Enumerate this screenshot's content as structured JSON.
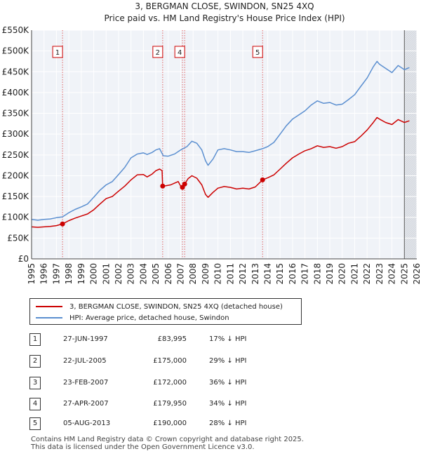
{
  "chart_data": {
    "type": "line",
    "title": "3, BERGMAN CLOSE, SWINDON, SN25 4XQ",
    "subtitle": "Price paid vs. HM Land Registry's House Price Index (HPI)",
    "xlim": [
      1995,
      2026
    ],
    "ylim": [
      0,
      550000
    ],
    "y_ticks": [
      {
        "value": 0,
        "label": "£0"
      },
      {
        "value": 50000,
        "label": "£50K"
      },
      {
        "value": 100000,
        "label": "£100K"
      },
      {
        "value": 150000,
        "label": "£150K"
      },
      {
        "value": 200000,
        "label": "£200K"
      },
      {
        "value": 250000,
        "label": "£250K"
      },
      {
        "value": 300000,
        "label": "£300K"
      },
      {
        "value": 350000,
        "label": "£350K"
      },
      {
        "value": 400000,
        "label": "£400K"
      },
      {
        "value": 450000,
        "label": "£450K"
      },
      {
        "value": 500000,
        "label": "£500K"
      },
      {
        "value": 550000,
        "label": "£550K"
      }
    ],
    "x_ticks": [
      "1995",
      "1996",
      "1997",
      "1998",
      "1999",
      "2000",
      "2001",
      "2002",
      "2003",
      "2004",
      "2005",
      "2006",
      "2007",
      "2008",
      "2009",
      "2010",
      "2011",
      "2012",
      "2013",
      "2014",
      "2015",
      "2016",
      "2017",
      "2018",
      "2019",
      "2020",
      "2021",
      "2022",
      "2023",
      "2024",
      "2025",
      "2026"
    ],
    "grid": true,
    "series": [
      {
        "name": "3, BERGMAN CLOSE, SWINDON, SN25 4XQ (detached house)",
        "color": "#cc0000",
        "points": [
          [
            1995.0,
            77000
          ],
          [
            1995.5,
            76000
          ],
          [
            1996.0,
            77000
          ],
          [
            1996.5,
            78000
          ],
          [
            1997.0,
            80000
          ],
          [
            1997.49,
            83995
          ],
          [
            1998.0,
            92000
          ],
          [
            1998.5,
            98000
          ],
          [
            1999.0,
            103000
          ],
          [
            1999.5,
            108000
          ],
          [
            2000.0,
            118000
          ],
          [
            2000.5,
            132000
          ],
          [
            2001.0,
            145000
          ],
          [
            2001.5,
            150000
          ],
          [
            2002.0,
            163000
          ],
          [
            2002.5,
            175000
          ],
          [
            2003.0,
            190000
          ],
          [
            2003.5,
            202000
          ],
          [
            2004.0,
            203000
          ],
          [
            2004.3,
            197000
          ],
          [
            2004.7,
            204000
          ],
          [
            2005.0,
            212000
          ],
          [
            2005.3,
            216000
          ],
          [
            2005.5,
            212000
          ],
          [
            2005.55,
            175000
          ],
          [
            2005.8,
            176000
          ],
          [
            2006.2,
            178000
          ],
          [
            2006.5,
            182000
          ],
          [
            2006.8,
            186000
          ],
          [
            2007.0,
            175000
          ],
          [
            2007.14,
            172000
          ],
          [
            2007.32,
            179950
          ],
          [
            2007.6,
            193000
          ],
          [
            2007.9,
            200000
          ],
          [
            2008.3,
            194000
          ],
          [
            2008.7,
            178000
          ],
          [
            2009.0,
            155000
          ],
          [
            2009.2,
            148000
          ],
          [
            2009.6,
            160000
          ],
          [
            2010.0,
            170000
          ],
          [
            2010.5,
            174000
          ],
          [
            2011.0,
            172000
          ],
          [
            2011.5,
            168000
          ],
          [
            2012.0,
            170000
          ],
          [
            2012.5,
            168000
          ],
          [
            2013.0,
            173000
          ],
          [
            2013.59,
            190000
          ],
          [
            2014.0,
            195000
          ],
          [
            2014.5,
            202000
          ],
          [
            2015.0,
            216000
          ],
          [
            2015.5,
            230000
          ],
          [
            2016.0,
            243000
          ],
          [
            2016.5,
            252000
          ],
          [
            2017.0,
            260000
          ],
          [
            2017.5,
            265000
          ],
          [
            2018.0,
            272000
          ],
          [
            2018.5,
            268000
          ],
          [
            2019.0,
            270000
          ],
          [
            2019.5,
            266000
          ],
          [
            2020.0,
            270000
          ],
          [
            2020.5,
            278000
          ],
          [
            2021.0,
            282000
          ],
          [
            2021.5,
            295000
          ],
          [
            2022.0,
            310000
          ],
          [
            2022.5,
            328000
          ],
          [
            2022.8,
            340000
          ],
          [
            2023.0,
            336000
          ],
          [
            2023.5,
            328000
          ],
          [
            2024.0,
            323000
          ],
          [
            2024.5,
            335000
          ],
          [
            2025.0,
            328000
          ],
          [
            2025.4,
            332000
          ]
        ]
      },
      {
        "name": "HPI: Average price, detached house, Swindon",
        "color": "#5b8fd0",
        "points": [
          [
            1995.0,
            95000
          ],
          [
            1995.5,
            93000
          ],
          [
            1996.0,
            95000
          ],
          [
            1996.5,
            96000
          ],
          [
            1997.0,
            99000
          ],
          [
            1997.49,
            101000
          ],
          [
            1998.0,
            111000
          ],
          [
            1998.5,
            119000
          ],
          [
            1999.0,
            125000
          ],
          [
            1999.5,
            132000
          ],
          [
            2000.0,
            148000
          ],
          [
            2000.5,
            165000
          ],
          [
            2001.0,
            178000
          ],
          [
            2001.5,
            186000
          ],
          [
            2002.0,
            203000
          ],
          [
            2002.5,
            220000
          ],
          [
            2003.0,
            243000
          ],
          [
            2003.5,
            252000
          ],
          [
            2004.0,
            255000
          ],
          [
            2004.3,
            251000
          ],
          [
            2004.7,
            256000
          ],
          [
            2005.0,
            262000
          ],
          [
            2005.3,
            265000
          ],
          [
            2005.6,
            248000
          ],
          [
            2006.0,
            247000
          ],
          [
            2006.5,
            252000
          ],
          [
            2007.0,
            262000
          ],
          [
            2007.5,
            270000
          ],
          [
            2007.9,
            283000
          ],
          [
            2008.3,
            278000
          ],
          [
            2008.7,
            262000
          ],
          [
            2009.0,
            236000
          ],
          [
            2009.2,
            225000
          ],
          [
            2009.6,
            240000
          ],
          [
            2010.0,
            262000
          ],
          [
            2010.5,
            265000
          ],
          [
            2011.0,
            262000
          ],
          [
            2011.5,
            258000
          ],
          [
            2012.0,
            258000
          ],
          [
            2012.5,
            256000
          ],
          [
            2013.0,
            260000
          ],
          [
            2013.59,
            265000
          ],
          [
            2014.0,
            270000
          ],
          [
            2014.5,
            280000
          ],
          [
            2015.0,
            300000
          ],
          [
            2015.5,
            320000
          ],
          [
            2016.0,
            336000
          ],
          [
            2016.5,
            346000
          ],
          [
            2017.0,
            356000
          ],
          [
            2017.5,
            370000
          ],
          [
            2018.0,
            380000
          ],
          [
            2018.5,
            374000
          ],
          [
            2019.0,
            376000
          ],
          [
            2019.5,
            370000
          ],
          [
            2020.0,
            372000
          ],
          [
            2020.5,
            383000
          ],
          [
            2021.0,
            395000
          ],
          [
            2021.5,
            415000
          ],
          [
            2022.0,
            435000
          ],
          [
            2022.5,
            462000
          ],
          [
            2022.8,
            475000
          ],
          [
            2023.0,
            468000
          ],
          [
            2023.5,
            458000
          ],
          [
            2024.0,
            448000
          ],
          [
            2024.5,
            465000
          ],
          [
            2025.0,
            455000
          ],
          [
            2025.4,
            460000
          ]
        ]
      }
    ],
    "transactions": [
      {
        "n": "1",
        "x": 1997.49,
        "value": 83995
      },
      {
        "n": "2",
        "x": 2005.55,
        "value": 175000
      },
      {
        "n": "3",
        "x": 2007.14,
        "value": 172000
      },
      {
        "n": "4",
        "x": 2007.32,
        "value": 179950
      },
      {
        "n": "5",
        "x": 2013.59,
        "value": 190000
      }
    ],
    "marker_labels": [
      {
        "n": "1",
        "x": 1997.49
      },
      {
        "n": "2",
        "x": 2005.55
      },
      {
        "n": "4",
        "x": 2007.32
      },
      {
        "n": "5",
        "x": 2013.59
      }
    ],
    "future_start": 2025.0
  },
  "legend": {
    "items": [
      {
        "label": "3, BERGMAN CLOSE, SWINDON, SN25 4XQ (detached house)",
        "color": "#cc0000"
      },
      {
        "label": "HPI: Average price, detached house, Swindon",
        "color": "#5b8fd0"
      }
    ]
  },
  "table": {
    "rows": [
      {
        "n": "1",
        "date": "27-JUN-1997",
        "price": "£83,995",
        "hpi": "17% ↓ HPI"
      },
      {
        "n": "2",
        "date": "22-JUL-2005",
        "price": "£175,000",
        "hpi": "29% ↓ HPI"
      },
      {
        "n": "3",
        "date": "23-FEB-2007",
        "price": "£172,000",
        "hpi": "36% ↓ HPI"
      },
      {
        "n": "4",
        "date": "27-APR-2007",
        "price": "£179,950",
        "hpi": "34% ↓ HPI"
      },
      {
        "n": "5",
        "date": "05-AUG-2013",
        "price": "£190,000",
        "hpi": "28% ↓ HPI"
      }
    ]
  },
  "footer": {
    "line1": "Contains HM Land Registry data © Crown copyright and database right 2025.",
    "line2": "This data is licensed under the Open Government Licence v3.0."
  }
}
